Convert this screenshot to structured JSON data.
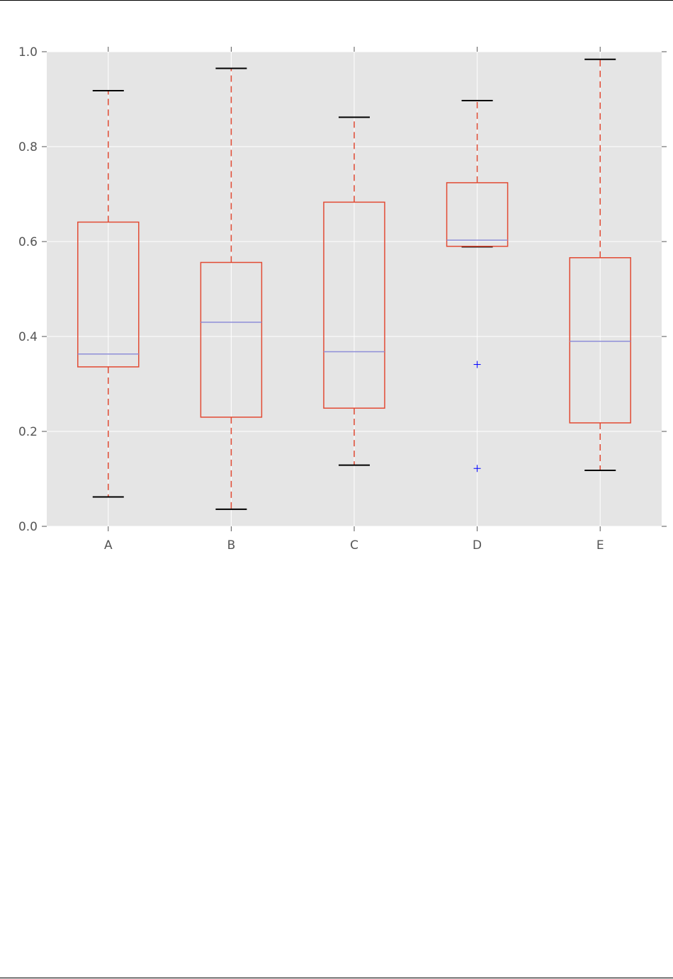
{
  "chart_data": {
    "type": "box",
    "categories": [
      "A",
      "B",
      "C",
      "D",
      "E"
    ],
    "boxes": [
      {
        "category": "A",
        "whislo": 0.062,
        "q1": 0.336,
        "med": 0.363,
        "q3": 0.641,
        "whishi": 0.918,
        "fliers": []
      },
      {
        "category": "B",
        "whislo": 0.036,
        "q1": 0.23,
        "med": 0.43,
        "q3": 0.556,
        "whishi": 0.965,
        "fliers": []
      },
      {
        "category": "C",
        "whislo": 0.129,
        "q1": 0.249,
        "med": 0.368,
        "q3": 0.683,
        "whishi": 0.862,
        "fliers": []
      },
      {
        "category": "D",
        "whislo": 0.589,
        "q1": 0.59,
        "med": 0.603,
        "q3": 0.724,
        "whishi": 0.897,
        "fliers": [
          0.341,
          0.122
        ]
      },
      {
        "category": "E",
        "whislo": 0.118,
        "q1": 0.218,
        "med": 0.39,
        "q3": 0.566,
        "whishi": 0.984,
        "fliers": []
      }
    ],
    "y_ticks": [
      "0.0",
      "0.2",
      "0.4",
      "0.6",
      "0.8",
      "1.0"
    ],
    "ylim": [
      0,
      1
    ],
    "grid": true,
    "colors": {
      "plot_background": "#e5e5e5",
      "grid": "#ffffff",
      "box": "#e24a33",
      "whisker": "#e24a33",
      "cap": "#000000",
      "median": "#8e8ed8",
      "flier": "#0000ff",
      "tick": "#555555"
    }
  }
}
